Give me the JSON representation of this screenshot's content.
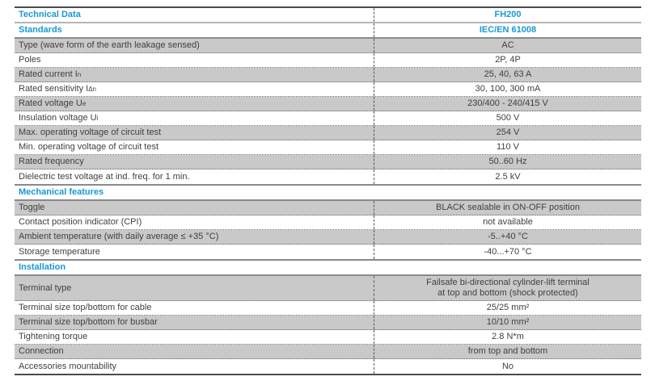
{
  "colors": {
    "accent_blue": "#1899d4",
    "row_shade": "#c9c9c9",
    "text": "#414042",
    "border_dark": "#4b4b4d",
    "border_mid": "#8a8a8c",
    "border_light": "#b5b5b7",
    "divider_dotted": "#6b6b6d",
    "column_dashed": "#58585a"
  },
  "table": {
    "title_row": {
      "label": "Technical Data",
      "value": "FH200"
    },
    "standards_row": {
      "label": "Standards",
      "value": "IEC/EN 61008"
    },
    "sections": [
      {
        "name": "",
        "rows": [
          {
            "label": "Type (wave form of the earth leakage sensed)",
            "value": "AC"
          },
          {
            "label": "Poles",
            "value": "2P, 4P"
          },
          {
            "label": "Rated current I",
            "sub": "n",
            "value": "25, 40, 63 A"
          },
          {
            "label": "Rated sensitivity I",
            "sub": "Δn",
            "value": "30, 100, 300 mA"
          },
          {
            "label": "Rated voltage U",
            "sub": "e",
            "value": "230/400 - 240/415 V"
          },
          {
            "label": "Insulation voltage U",
            "sub": "i",
            "value": "500 V"
          },
          {
            "label": "Max. operating voltage of circuit test",
            "value": "254 V"
          },
          {
            "label": "Min. operating voltage of circuit test",
            "value": "110 V"
          },
          {
            "label": "Rated frequency",
            "value": "50..60 Hz"
          },
          {
            "label": "Dielectric test voltage at ind. freq. for 1 min.",
            "value": "2.5 kV"
          }
        ]
      },
      {
        "name": "Mechanical features",
        "rows": [
          {
            "label": "Toggle",
            "value": "BLACK sealable in ON-OFF position"
          },
          {
            "label": "Contact position indicator (CPI)",
            "value": "not available"
          },
          {
            "label": "Ambient temperature (with daily average ≤ +35 °C)",
            "value": "-5..+40 °C"
          },
          {
            "label": "Storage temperature",
            "value": "-40...+70 °C"
          }
        ]
      },
      {
        "name": "Installation",
        "rows": [
          {
            "label": "Terminal type",
            "value": "Failsafe bi-directional cylinder-lift terminal\nat top and bottom (shock protected)"
          },
          {
            "label": "Terminal size top/bottom for cable",
            "value": "25/25 mm²"
          },
          {
            "label": "Terminal size top/bottom for busbar",
            "value": "10/10 mm²"
          },
          {
            "label": "Tightening torque",
            "value": "2.8 N*m"
          },
          {
            "label": "Connection",
            "value": "from top and bottom"
          },
          {
            "label": "Accessories mountability",
            "value": "No"
          }
        ]
      }
    ]
  }
}
